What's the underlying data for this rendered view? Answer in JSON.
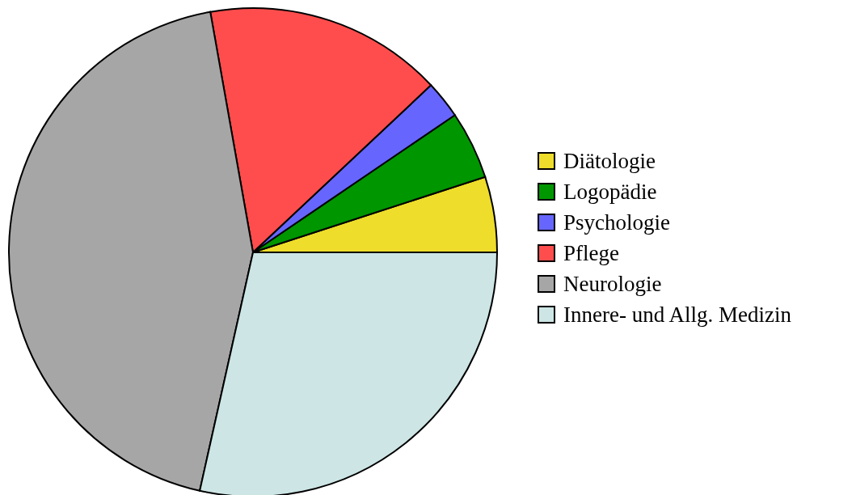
{
  "chart_data": {
    "type": "pie",
    "categories": [
      "Diätologie",
      "Logopädie",
      "Psychologie",
      "Pflege",
      "Neurologie",
      "Innere- und Allg. Medizin"
    ],
    "values": [
      5.0,
      4.5,
      2.5,
      15.8,
      43.7,
      28.5
    ],
    "colors": [
      "#eedd2a",
      "#009600",
      "#6666ff",
      "#ff4d4d",
      "#a6a6a6",
      "#cde5e5"
    ],
    "legend": "right"
  }
}
